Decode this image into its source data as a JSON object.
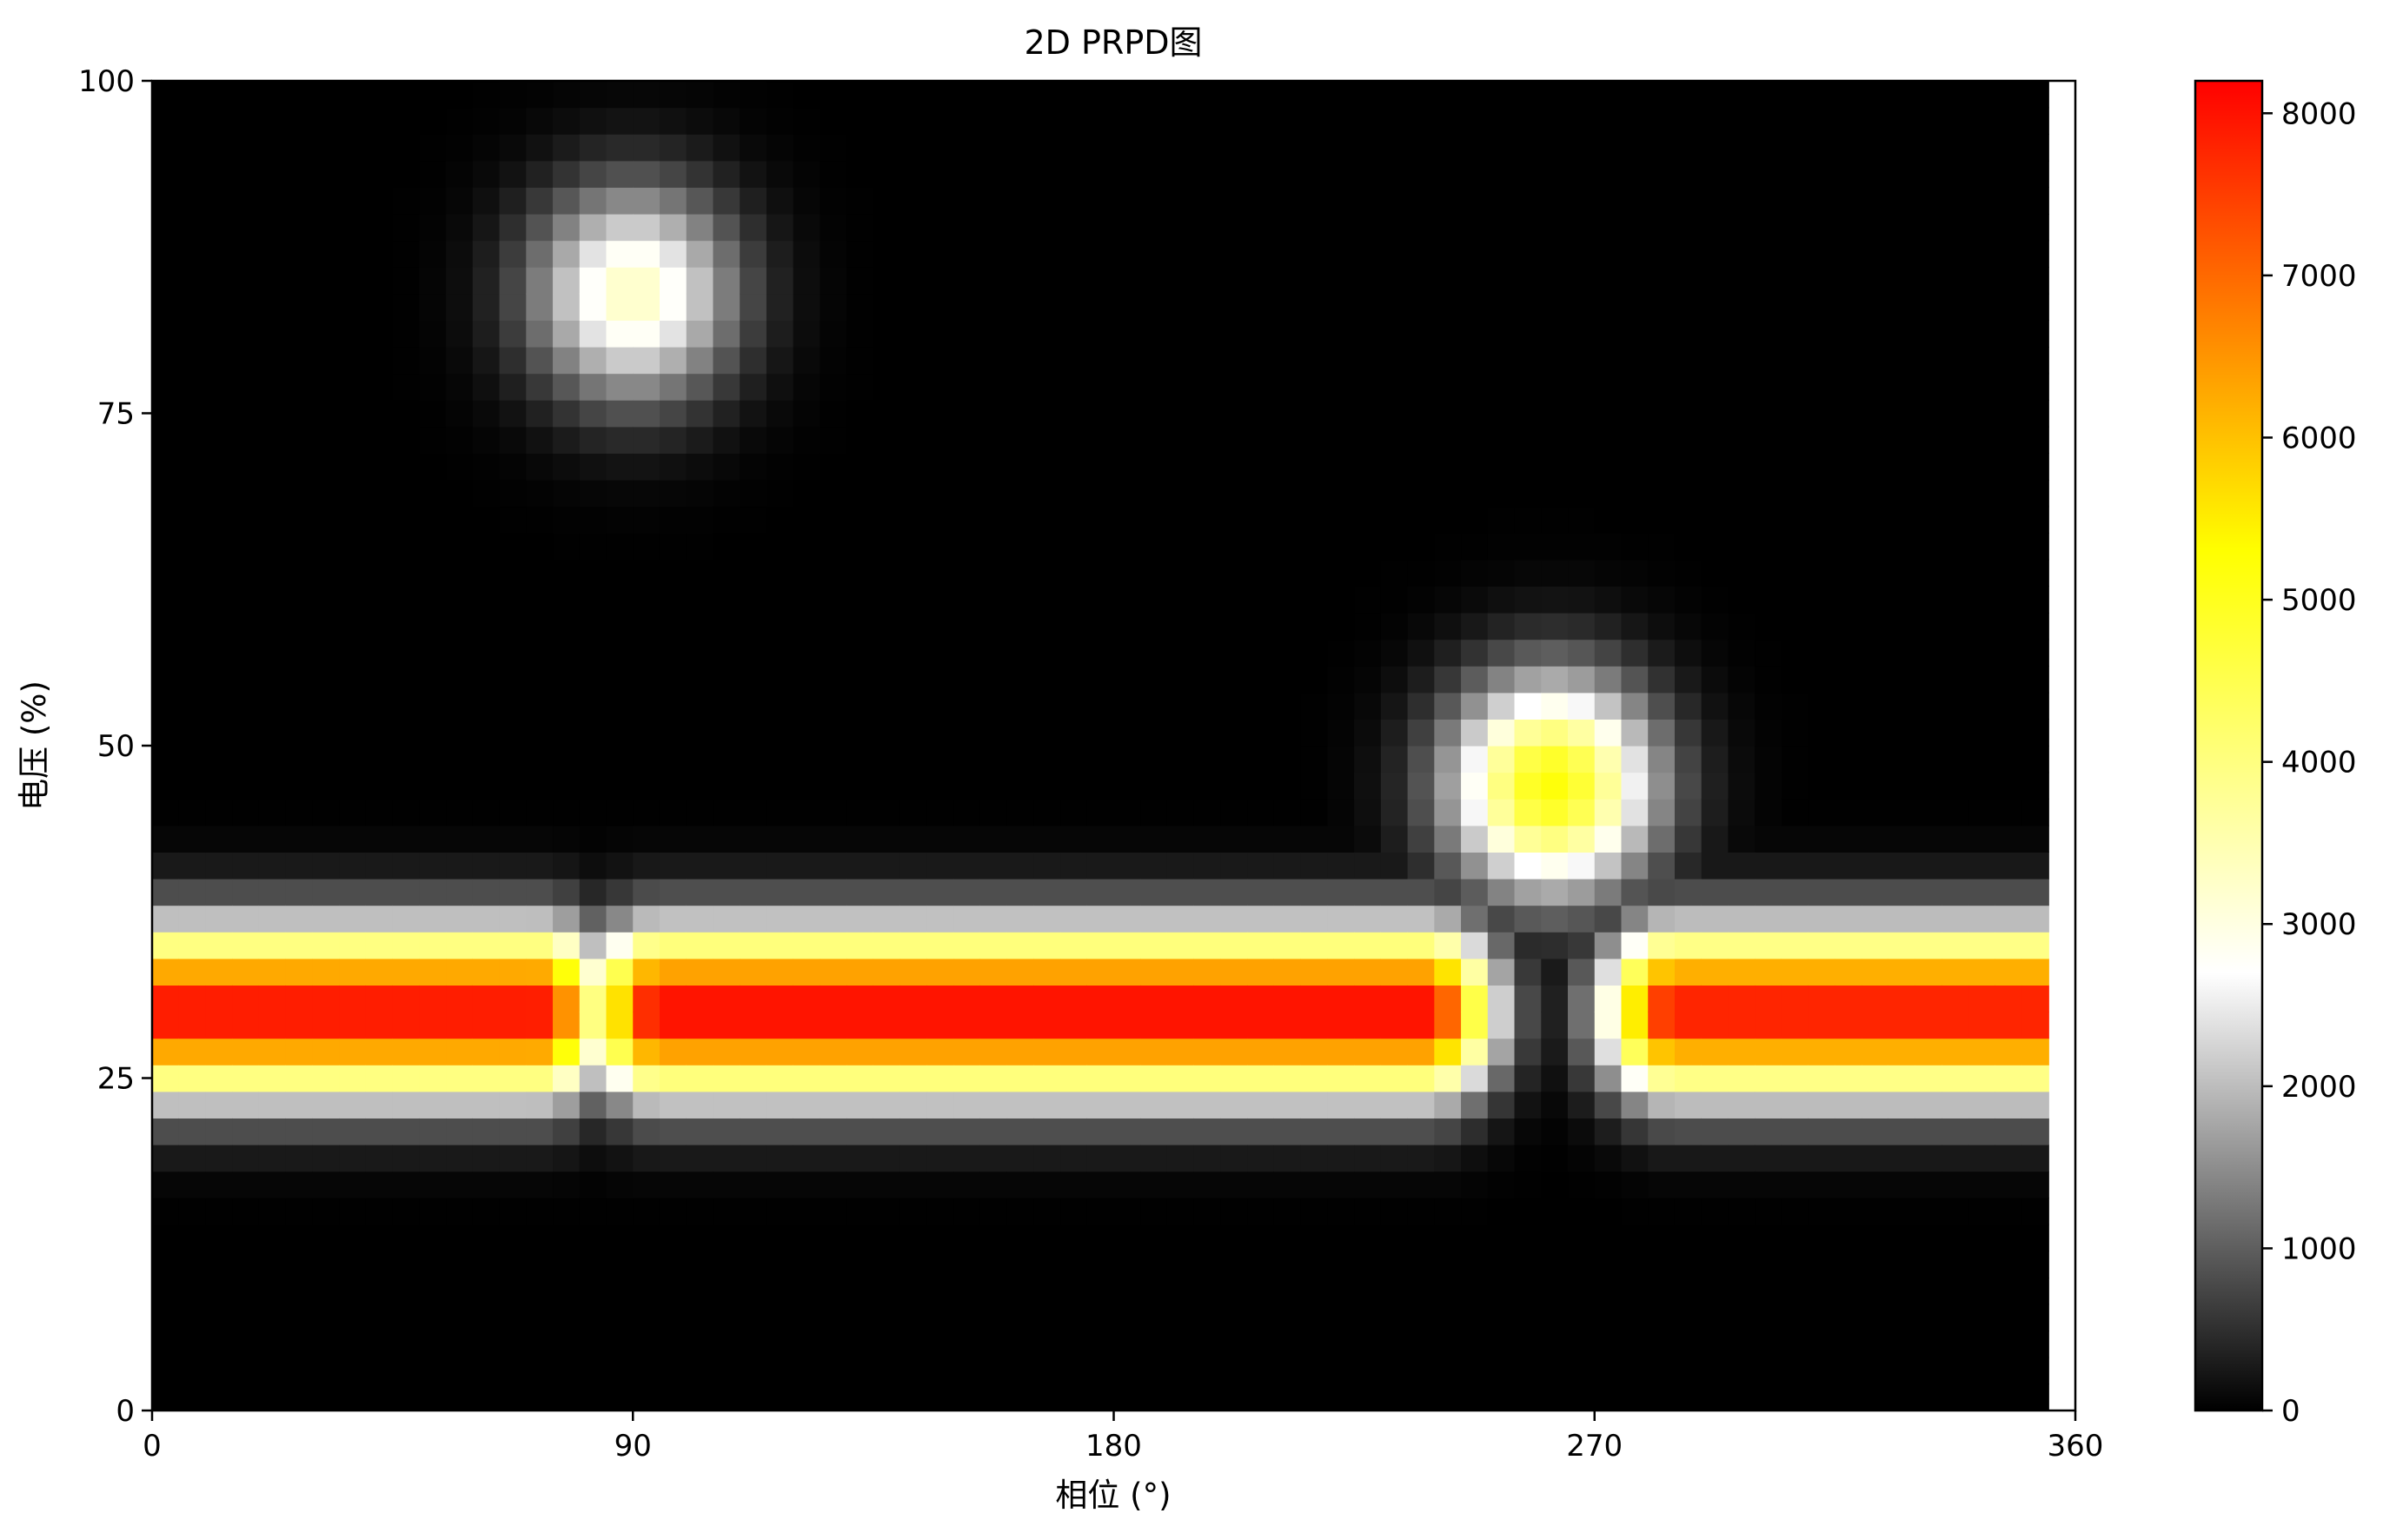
{
  "chart_data": {
    "type": "heatmap",
    "title": "2D PRPD图",
    "xlabel": "相位 (°)",
    "ylabel": "电压 (%)",
    "xlim": [
      0,
      360
    ],
    "ylim": [
      0,
      100
    ],
    "x_ticks": [
      "0",
      "90",
      "180",
      "270",
      "360"
    ],
    "y_ticks": [
      "0",
      "25",
      "50",
      "75",
      "100"
    ],
    "grid": false,
    "bins": {
      "x": 72,
      "y": 50,
      "x_step": 5,
      "y_step": 2
    },
    "colorbar": {
      "position": "right",
      "min": 0,
      "max": 8200,
      "ticks": [
        "0",
        "1000",
        "2000",
        "3000",
        "4000",
        "5000",
        "6000",
        "7000",
        "8000"
      ],
      "colormap": [
        {
          "value": 0,
          "color": "#000000"
        },
        {
          "value": 2700,
          "color": "#ffffff"
        },
        {
          "value": 5300,
          "color": "#ffff00"
        },
        {
          "value": 6600,
          "color": "#ff8c00"
        },
        {
          "value": 8200,
          "color": "#ff0000"
        }
      ]
    },
    "clusters": [
      {
        "name": "band-segment-1",
        "shape": "band",
        "phase_from": 0,
        "phase_to": 72,
        "voltage_center": 30,
        "peak": 8100
      },
      {
        "name": "band-segment-2",
        "shape": "band",
        "phase_from": 95,
        "phase_to": 238,
        "voltage_center": 30,
        "peak": 8200
      },
      {
        "name": "band-segment-3",
        "shape": "band",
        "phase_from": 285,
        "phase_to": 355,
        "voltage_center": 30,
        "peak": 8000
      },
      {
        "name": "band-gap-fill",
        "shape": "band",
        "phase_from": 72,
        "phase_to": 95,
        "voltage_center": 30,
        "peak": 3600
      },
      {
        "name": "peak-upper",
        "shape": "spot",
        "phase_center": 90,
        "voltage_center": 84,
        "peak": 3300
      },
      {
        "name": "peak-mid",
        "shape": "spot",
        "phase_center": 262,
        "voltage_center": 47,
        "peak": 5200
      }
    ],
    "empty_column_from_phase": 355
  }
}
